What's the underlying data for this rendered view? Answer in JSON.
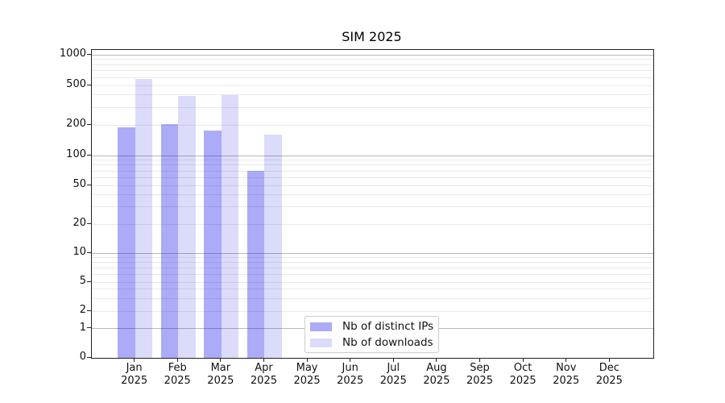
{
  "title": "SIM 2025",
  "chart_data": {
    "type": "bar",
    "title": "SIM 2025",
    "categories": [
      "Jan 2025",
      "Feb 2025",
      "Mar 2025",
      "Apr 2025",
      "May 2025",
      "Jun 2025",
      "Jul 2025",
      "Aug 2025",
      "Sep 2025",
      "Oct 2025",
      "Nov 2025",
      "Dec 2025"
    ],
    "series": [
      {
        "name": "Nb of distinct IPs",
        "color": "rgba(0,0,230,0.33)",
        "values": [
          190,
          205,
          177,
          70,
          0,
          0,
          0,
          0,
          0,
          0,
          0,
          0
        ]
      },
      {
        "name": "Nb of downloads",
        "color": "rgba(0,0,219,0.14)",
        "values": [
          580,
          390,
          400,
          160,
          0,
          0,
          0,
          0,
          0,
          0,
          0,
          0
        ]
      }
    ],
    "yscale": "symlog",
    "yticks": [
      0,
      1,
      2,
      5,
      10,
      20,
      50,
      100,
      200,
      500,
      1000
    ],
    "ylim": [
      0,
      1000
    ],
    "grid": "both",
    "legend_position": "bottom-center-inside"
  },
  "colors": {
    "grid_major": "#b8b8b8",
    "grid_minor": "#e9e9e9",
    "spine": "#222222",
    "legend_border": "#cccccc",
    "background": "#ffffff"
  }
}
